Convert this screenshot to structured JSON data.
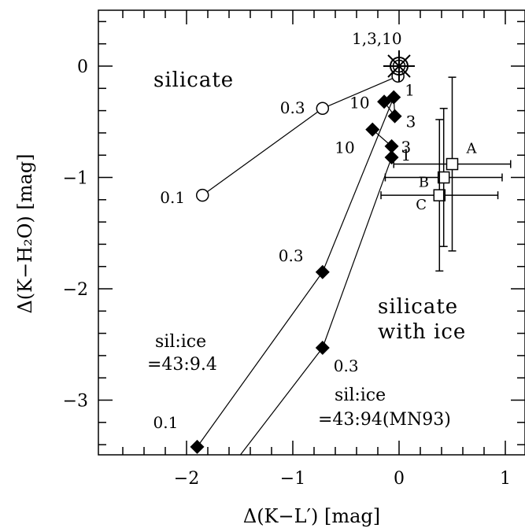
{
  "chart_data": {
    "type": "scatter",
    "xlabel": "Δ(K−L′) [mag]",
    "ylabel": "Δ(K−H₂O) [mag]",
    "xlim": [
      -2.75,
      1.2
    ],
    "ylim": [
      -3.5,
      0.5
    ],
    "xticks": [
      -2,
      -1,
      0,
      1
    ],
    "yticks": [
      0,
      -1,
      -2,
      -3
    ],
    "xtick_labels": [
      "−2",
      "−1",
      "0",
      "1"
    ],
    "ytick_labels": [
      "0",
      "−1",
      "−2",
      "−3"
    ],
    "grid": false,
    "legend": "none",
    "series": [
      {
        "marker": "open-circle",
        "points": [
          {
            "x": -1.85,
            "y": -1.16,
            "label": "0.1"
          },
          {
            "x": -0.72,
            "y": -0.38,
            "label": "0.3"
          },
          {
            "x": -0.01,
            "y": -0.09,
            "label": ""
          },
          {
            "x": 0.0,
            "y": 0.0,
            "label": "1,3,10"
          }
        ]
      },
      {
        "marker": "filled-diamond",
        "points": [
          {
            "x": -1.9,
            "y": -3.42,
            "label": "0.1"
          },
          {
            "x": -0.72,
            "y": -1.85,
            "label": "0.3"
          },
          {
            "x": -0.05,
            "y": -0.28,
            "label": "1"
          },
          {
            "x": -0.04,
            "y": -0.45,
            "label": "3"
          },
          {
            "x": -0.14,
            "y": -0.32,
            "label": "10"
          }
        ]
      },
      {
        "marker": "filled-diamond",
        "points": [
          {
            "x": -1.5,
            "y": -3.5,
            "label": ""
          },
          {
            "x": -0.72,
            "y": -2.53,
            "label": "0.3"
          },
          {
            "x": -0.07,
            "y": -0.82,
            "label": "1"
          },
          {
            "x": -0.07,
            "y": -0.72,
            "label": "3"
          },
          {
            "x": -0.25,
            "y": -0.57,
            "label": "10"
          }
        ]
      },
      {
        "marker": "open-square",
        "points": [
          {
            "x": 0.5,
            "y": -0.88,
            "label": "A",
            "xerr": [
              0.55,
              0.55
            ],
            "yerr": [
              0.78,
              0.78
            ]
          },
          {
            "x": 0.42,
            "y": -1.0,
            "label": "B",
            "xerr": [
              0.55,
              0.55
            ],
            "yerr": [
              0.62,
              0.62
            ]
          },
          {
            "x": 0.38,
            "y": -1.16,
            "label": "C",
            "xerr": [
              0.55,
              0.55
            ],
            "yerr": [
              0.68,
              0.68
            ]
          }
        ]
      }
    ],
    "star_point": {
      "x": 0.0,
      "y": 0.0
    },
    "annotations": {
      "silicate": "silicate",
      "silicate_with_ice_1": "silicate",
      "silicate_with_ice_2": "with ice",
      "sil_ice_1_line1": "sil:ice",
      "sil_ice_1_line2": "=43:9.4",
      "sil_ice_2_line1": "sil:ice",
      "sil_ice_2_line2": "=43:94(MN93)"
    }
  }
}
